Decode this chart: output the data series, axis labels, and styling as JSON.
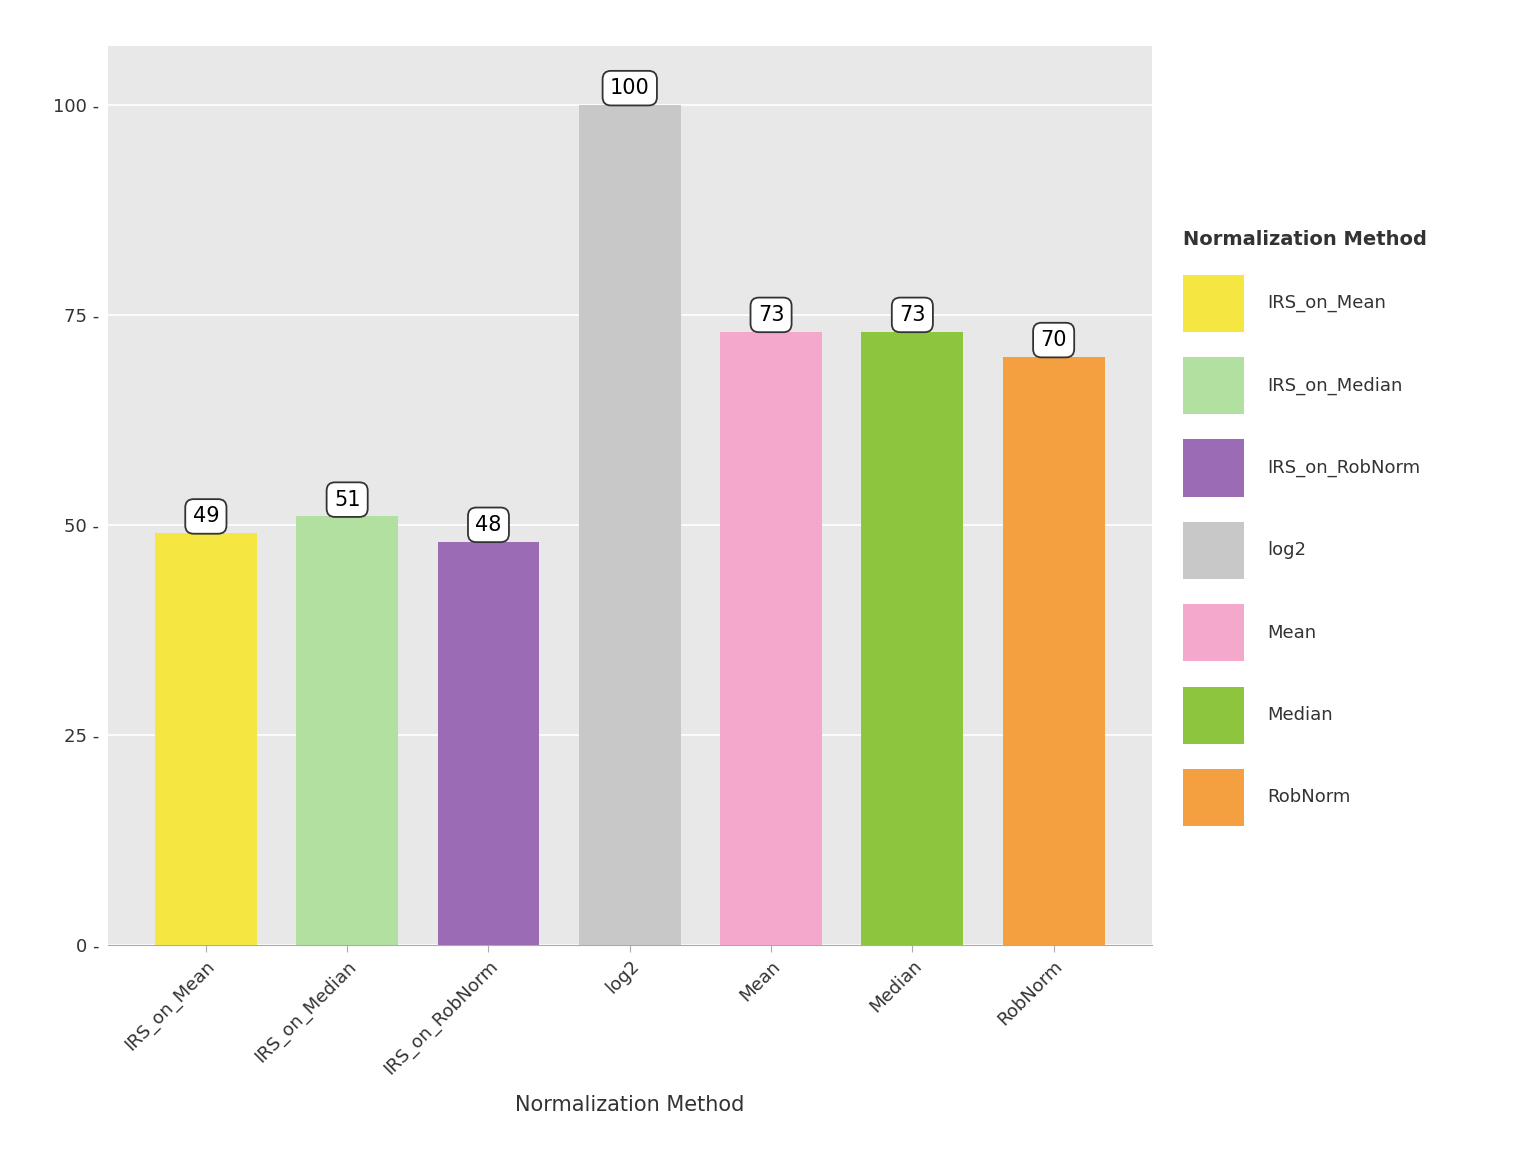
{
  "categories": [
    "IRS_on_Mean",
    "IRS_on_Median",
    "IRS_on_RobNorm",
    "log2",
    "Mean",
    "Median",
    "RobNorm"
  ],
  "values": [
    49,
    51,
    48,
    100,
    73,
    73,
    70
  ],
  "bar_colors": [
    "#F5E642",
    "#B2E0A0",
    "#9B6BB5",
    "#C8C8C8",
    "#F4A8CC",
    "#8DC53F",
    "#F5A040"
  ],
  "title": "",
  "xlabel": "Normalization Method",
  "ylabel": "",
  "ylim": [
    0,
    107
  ],
  "yticks": [
    0,
    25,
    50,
    75,
    100
  ],
  "ytick_labels": [
    "0 -",
    "25 -",
    "50 -",
    "75 -",
    "100 -"
  ],
  "background_color": "#EBEBEB",
  "panel_background": "#E8E8E8",
  "grid_color": "#FFFFFF",
  "legend_title": "Normalization Method",
  "legend_labels": [
    "IRS_on_Mean",
    "IRS_on_Median",
    "IRS_on_RobNorm",
    "log2",
    "Mean",
    "Median",
    "RobNorm"
  ],
  "legend_colors": [
    "#F5E642",
    "#B2E0A0",
    "#9B6BB5",
    "#C8C8C8",
    "#F4A8CC",
    "#8DC53F",
    "#F5A040"
  ],
  "label_fontsize": 15,
  "tick_fontsize": 13,
  "legend_fontsize": 13,
  "legend_title_fontsize": 14,
  "annotation_fontsize": 15
}
